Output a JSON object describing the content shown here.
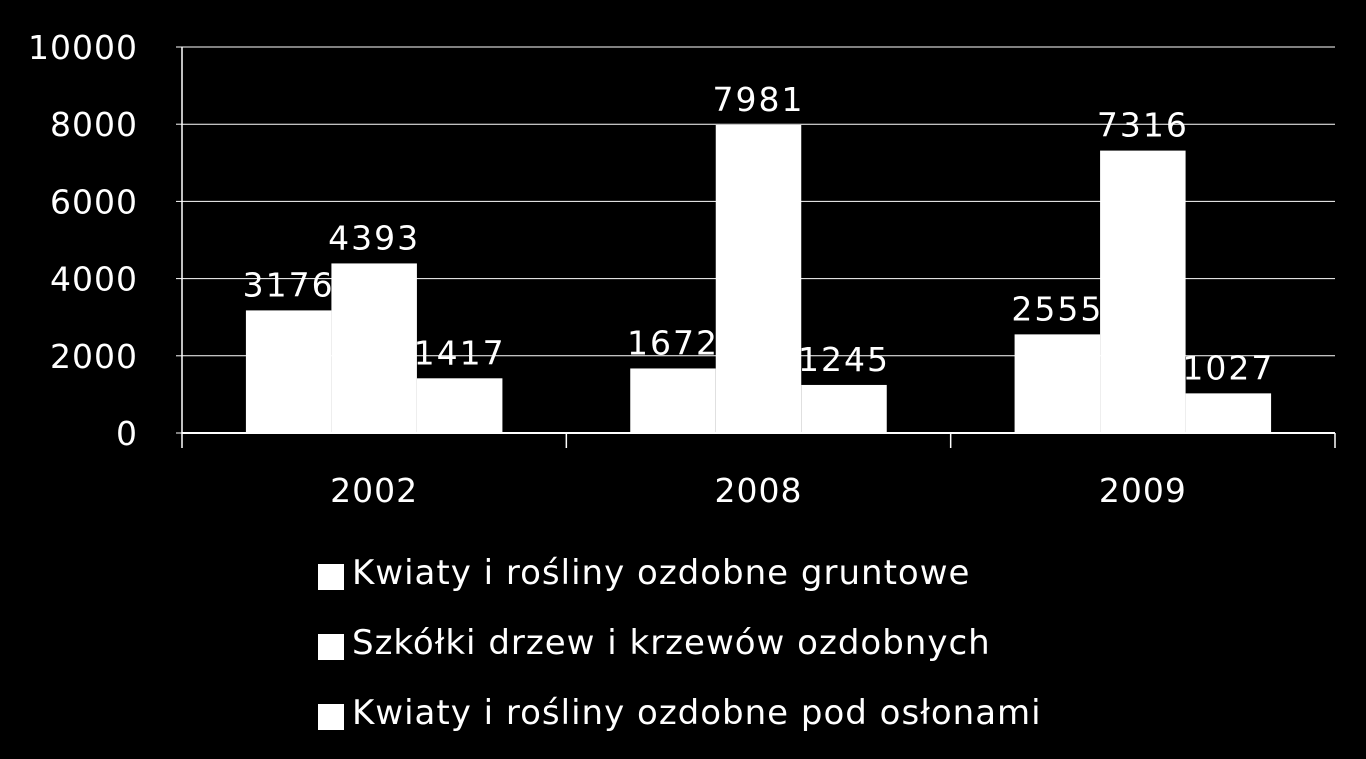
{
  "chart_data": {
    "type": "bar",
    "title": "",
    "xlabel": "",
    "ylabel": "",
    "categories": [
      "2002",
      "2008",
      "2009"
    ],
    "series": [
      {
        "name": "Kwiaty i rośliny ozdobne gruntowe",
        "values": [
          3176,
          1672,
          2555
        ],
        "labels": [
          "3176",
          "1672",
          "2555"
        ],
        "color": "#ffffff"
      },
      {
        "name": "Szkółki drzew i krzewów ozdobnych",
        "values": [
          4393,
          7981,
          7316
        ],
        "labels": [
          "4393",
          "7981",
          "7316"
        ],
        "color": "#ffffff"
      },
      {
        "name": "Kwiaty i rośliny ozdobne pod osłonami",
        "values": [
          1417,
          1245,
          1027
        ],
        "labels": [
          "1417",
          "1245",
          "1027"
        ],
        "color": "#ffffff"
      }
    ],
    "ylim": [
      0,
      10000
    ],
    "yticks": [
      "0",
      "2000",
      "4000",
      "6000",
      "8000",
      "10000"
    ],
    "ytick_values": [
      0,
      2000,
      4000,
      6000,
      8000,
      10000
    ],
    "grid": true,
    "legend_position": "bottom",
    "background": "#000000",
    "foreground": "#ffffff"
  }
}
